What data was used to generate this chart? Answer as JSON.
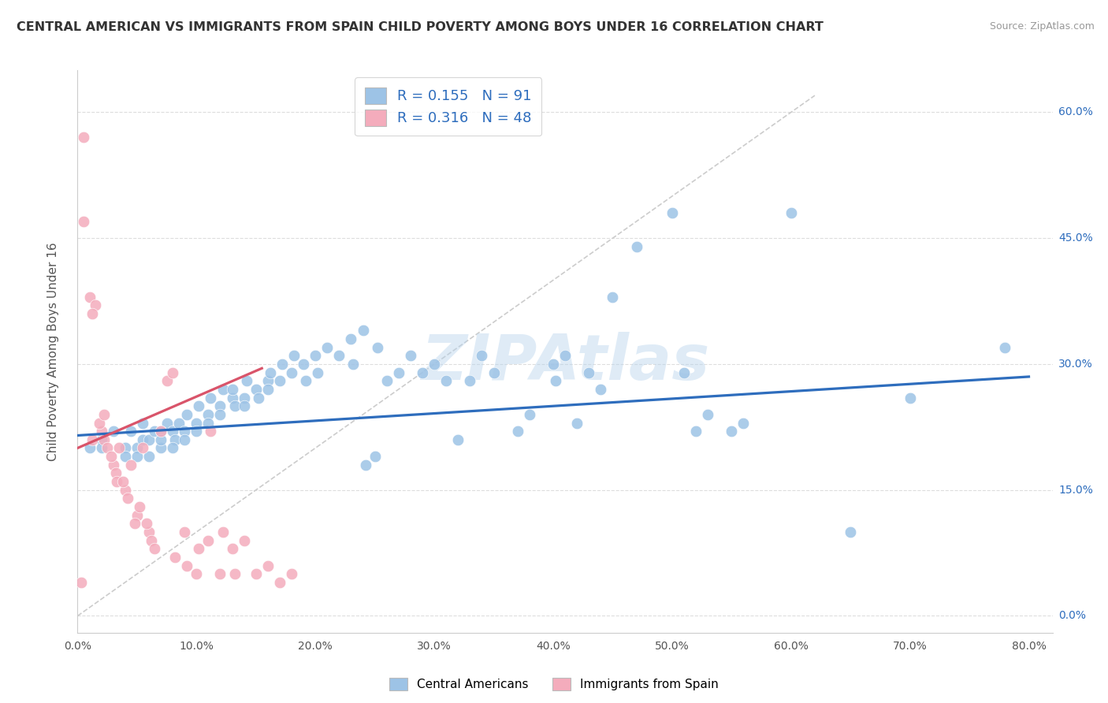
{
  "title": "CENTRAL AMERICAN VS IMMIGRANTS FROM SPAIN CHILD POVERTY AMONG BOYS UNDER 16 CORRELATION CHART",
  "source": "Source: ZipAtlas.com",
  "ylabel": "Child Poverty Among Boys Under 16",
  "xlim": [
    0.0,
    0.82
  ],
  "ylim": [
    -0.02,
    0.65
  ],
  "xticks": [
    0.0,
    0.1,
    0.2,
    0.3,
    0.4,
    0.5,
    0.6,
    0.7,
    0.8
  ],
  "xticklabels": [
    "0.0%",
    "10.0%",
    "20.0%",
    "30.0%",
    "40.0%",
    "50.0%",
    "60.0%",
    "70.0%",
    "80.0%"
  ],
  "ytick_vals": [
    0.0,
    0.15,
    0.3,
    0.45,
    0.6
  ],
  "ytick_labels": [
    "0.0%",
    "15.0%",
    "30.0%",
    "45.0%",
    "60.0%"
  ],
  "color_blue": "#9dc3e6",
  "color_pink": "#f4acbc",
  "color_blue_line": "#2e6dbd",
  "color_pink_line": "#d9546a",
  "color_text_blue": "#2e6dbd",
  "color_text_pink": "#d9546a",
  "legend_r1": "0.155",
  "legend_n1": "91",
  "legend_r2": "0.316",
  "legend_n2": "48",
  "watermark": "ZIPAtlas",
  "blue_scatter_x": [
    0.02,
    0.03,
    0.04,
    0.045,
    0.04,
    0.05,
    0.055,
    0.055,
    0.05,
    0.06,
    0.065,
    0.06,
    0.07,
    0.075,
    0.07,
    0.07,
    0.08,
    0.082,
    0.08,
    0.085,
    0.09,
    0.092,
    0.09,
    0.1,
    0.102,
    0.1,
    0.11,
    0.112,
    0.11,
    0.12,
    0.122,
    0.12,
    0.13,
    0.132,
    0.13,
    0.14,
    0.142,
    0.14,
    0.15,
    0.152,
    0.16,
    0.162,
    0.16,
    0.17,
    0.172,
    0.18,
    0.182,
    0.19,
    0.192,
    0.2,
    0.202,
    0.21,
    0.22,
    0.23,
    0.232,
    0.24,
    0.242,
    0.25,
    0.252,
    0.26,
    0.27,
    0.28,
    0.29,
    0.3,
    0.31,
    0.32,
    0.33,
    0.34,
    0.35,
    0.37,
    0.38,
    0.4,
    0.402,
    0.41,
    0.42,
    0.43,
    0.44,
    0.45,
    0.47,
    0.5,
    0.51,
    0.52,
    0.53,
    0.55,
    0.56,
    0.6,
    0.65,
    0.7,
    0.78,
    0.01,
    0.02
  ],
  "blue_scatter_y": [
    0.21,
    0.22,
    0.2,
    0.22,
    0.19,
    0.2,
    0.21,
    0.23,
    0.19,
    0.21,
    0.22,
    0.19,
    0.2,
    0.23,
    0.22,
    0.21,
    0.22,
    0.21,
    0.2,
    0.23,
    0.22,
    0.24,
    0.21,
    0.23,
    0.25,
    0.22,
    0.24,
    0.26,
    0.23,
    0.25,
    0.27,
    0.24,
    0.26,
    0.25,
    0.27,
    0.26,
    0.28,
    0.25,
    0.27,
    0.26,
    0.28,
    0.29,
    0.27,
    0.28,
    0.3,
    0.29,
    0.31,
    0.3,
    0.28,
    0.31,
    0.29,
    0.32,
    0.31,
    0.33,
    0.3,
    0.34,
    0.18,
    0.19,
    0.32,
    0.28,
    0.29,
    0.31,
    0.29,
    0.3,
    0.28,
    0.21,
    0.28,
    0.31,
    0.29,
    0.22,
    0.24,
    0.3,
    0.28,
    0.31,
    0.23,
    0.29,
    0.27,
    0.38,
    0.44,
    0.48,
    0.29,
    0.22,
    0.24,
    0.22,
    0.23,
    0.48,
    0.1,
    0.26,
    0.32,
    0.2,
    0.2
  ],
  "pink_scatter_x": [
    0.005,
    0.01,
    0.015,
    0.012,
    0.02,
    0.022,
    0.018,
    0.025,
    0.03,
    0.032,
    0.028,
    0.033,
    0.035,
    0.04,
    0.042,
    0.038,
    0.045,
    0.05,
    0.052,
    0.048,
    0.055,
    0.06,
    0.062,
    0.058,
    0.065,
    0.07,
    0.075,
    0.08,
    0.082,
    0.09,
    0.092,
    0.1,
    0.102,
    0.11,
    0.112,
    0.12,
    0.122,
    0.13,
    0.132,
    0.14,
    0.15,
    0.16,
    0.17,
    0.18,
    0.005,
    0.012,
    0.022,
    0.003
  ],
  "pink_scatter_y": [
    0.47,
    0.38,
    0.37,
    0.36,
    0.22,
    0.21,
    0.23,
    0.2,
    0.18,
    0.17,
    0.19,
    0.16,
    0.2,
    0.15,
    0.14,
    0.16,
    0.18,
    0.12,
    0.13,
    0.11,
    0.2,
    0.1,
    0.09,
    0.11,
    0.08,
    0.22,
    0.28,
    0.29,
    0.07,
    0.1,
    0.06,
    0.05,
    0.08,
    0.09,
    0.22,
    0.05,
    0.1,
    0.08,
    0.05,
    0.09,
    0.05,
    0.06,
    0.04,
    0.05,
    0.57,
    0.21,
    0.24,
    0.04
  ],
  "blue_line_x": [
    0.0,
    0.8
  ],
  "blue_line_y": [
    0.215,
    0.285
  ],
  "pink_line_x": [
    0.0,
    0.155
  ],
  "pink_line_y": [
    0.2,
    0.295
  ],
  "diag_line_x": [
    0.0,
    0.62
  ],
  "diag_line_y": [
    0.0,
    0.62
  ]
}
